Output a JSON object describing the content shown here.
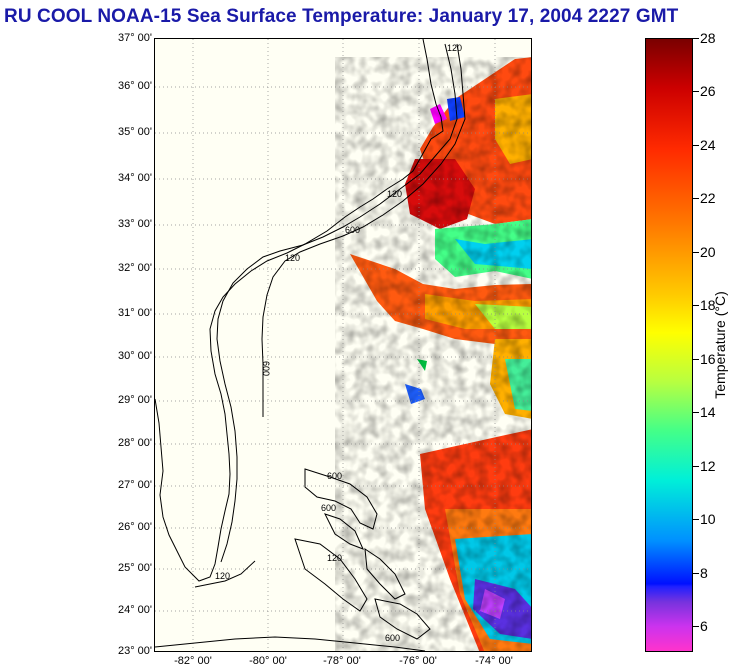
{
  "title": "RU COOL  NOAA-15  Sea Surface Temperature:  January 17, 2004 2227 GMT",
  "map": {
    "lat_labels": [
      "37° 00'",
      "36° 00'",
      "35° 00'",
      "34° 00'",
      "33° 00'",
      "32° 00'",
      "31° 00'",
      "30° 00'",
      "29° 00'",
      "28° 00'",
      "27° 00'",
      "26° 00'",
      "25° 00'",
      "24° 00'",
      "23° 00'"
    ],
    "lon_labels": [
      "-82° 00'",
      "-80° 00'",
      "-78° 00'",
      "-76° 00'",
      "-74° 00'"
    ],
    "contour_labels": [
      "120",
      "120",
      "600",
      "120",
      "600",
      "600",
      "600",
      "120",
      "120",
      "600"
    ],
    "colors": {
      "background": "#fffff4",
      "land_outline": "#000000",
      "title": "#1a1aa8"
    }
  },
  "colorbar": {
    "title": "Temperature (°C)",
    "ticks": [
      "28",
      "26",
      "24",
      "22",
      "20",
      "18",
      "16",
      "14",
      "12",
      "10",
      "8",
      "6"
    ],
    "range": [
      5,
      28
    ]
  }
}
